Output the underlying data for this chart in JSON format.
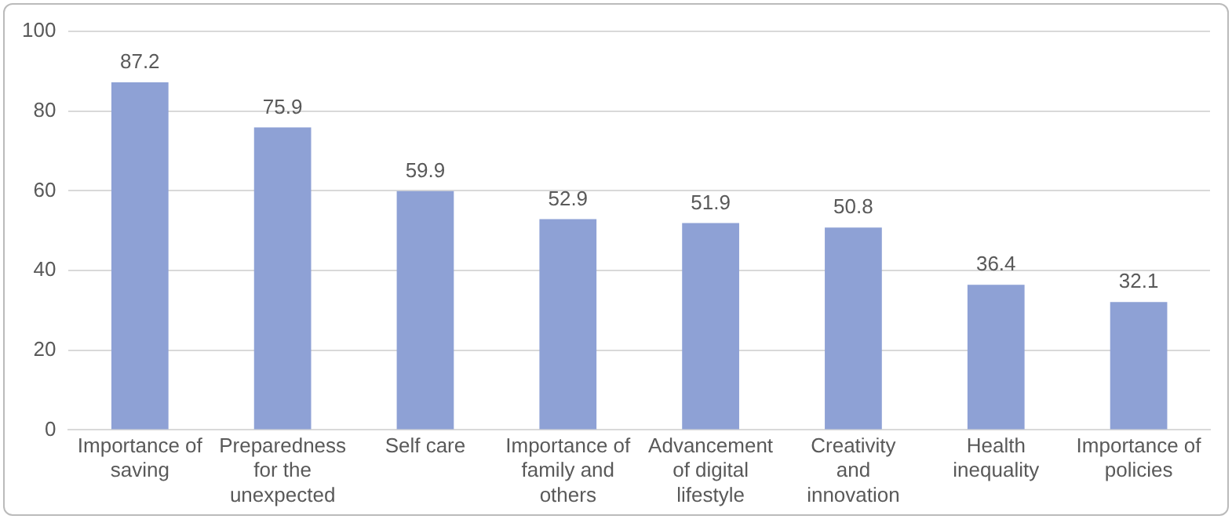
{
  "chart_data": {
    "type": "bar",
    "categories": [
      "Importance of saving",
      "Preparedness for the unexpected",
      "Self care",
      "Importance of family and others",
      "Advancement of digital lifestyle",
      "Creativity and innovation",
      "Health inequality",
      "Importance of policies"
    ],
    "values": [
      87.2,
      75.9,
      59.9,
      52.9,
      51.9,
      50.8,
      36.4,
      32.1
    ],
    "color": "#8ea1d5",
    "ylim": [
      0,
      100
    ],
    "yticks": [
      0,
      20,
      40,
      60,
      80,
      100
    ],
    "grid": "y",
    "data_labels": true
  }
}
